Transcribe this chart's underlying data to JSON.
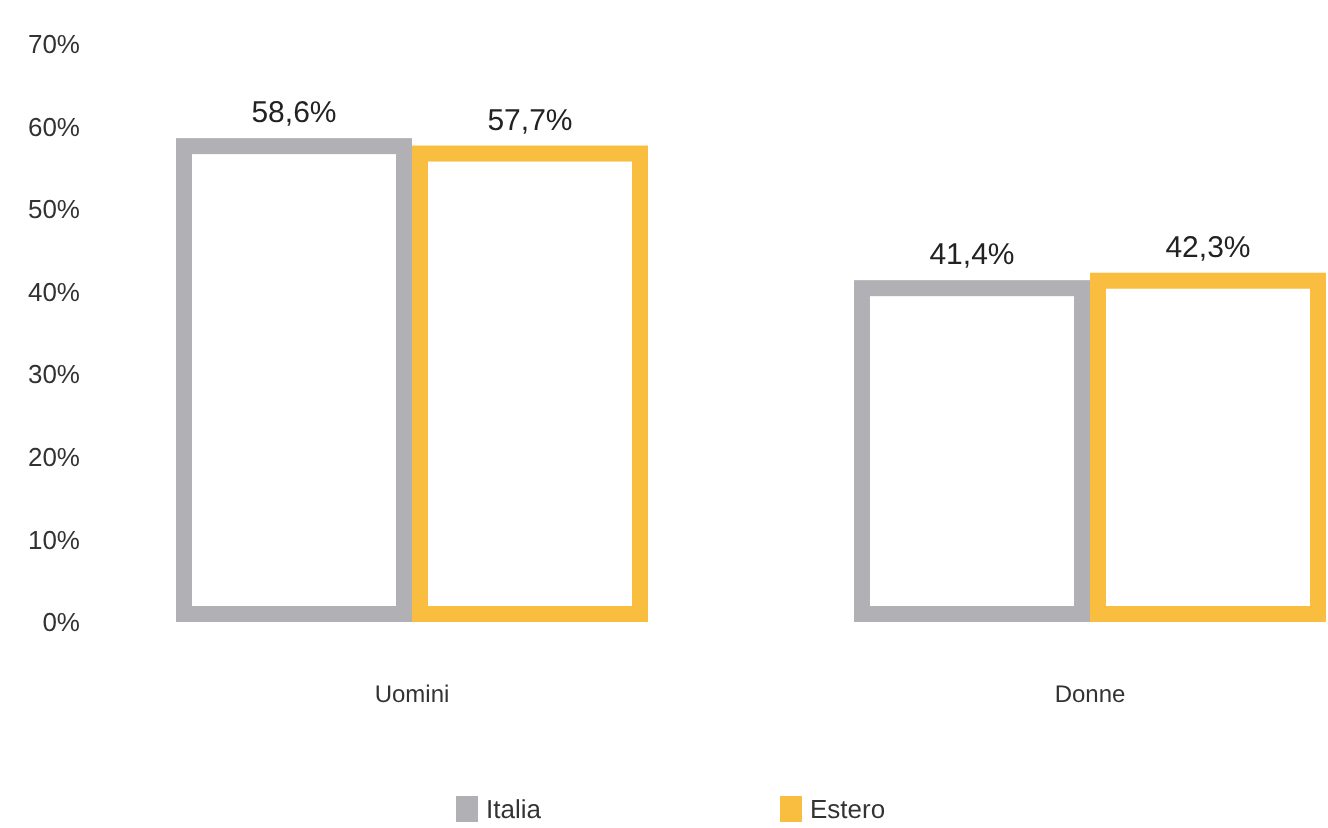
{
  "chart_data": {
    "type": "bar",
    "categories": [
      "Uomini",
      "Donne"
    ],
    "series": [
      {
        "name": "Italia",
        "color": "#b1b1b5",
        "values": [
          58.6,
          41.4
        ],
        "value_labels": [
          "58,6%",
          "41,4%"
        ]
      },
      {
        "name": "Estero",
        "color": "#f9bd3f",
        "values": [
          57.7,
          42.3
        ],
        "value_labels": [
          "57,7%",
          "42,3%"
        ]
      }
    ],
    "ylim": [
      0,
      70
    ],
    "yticks": [
      {
        "value": 0,
        "label": "0%"
      },
      {
        "value": 10,
        "label": "10%"
      },
      {
        "value": 20,
        "label": "20%"
      },
      {
        "value": 30,
        "label": "30%"
      },
      {
        "value": 40,
        "label": "40%"
      },
      {
        "value": 50,
        "label": "50%"
      },
      {
        "value": 60,
        "label": "60%"
      },
      {
        "value": 70,
        "label": "70%"
      }
    ],
    "legend": "bottom"
  }
}
